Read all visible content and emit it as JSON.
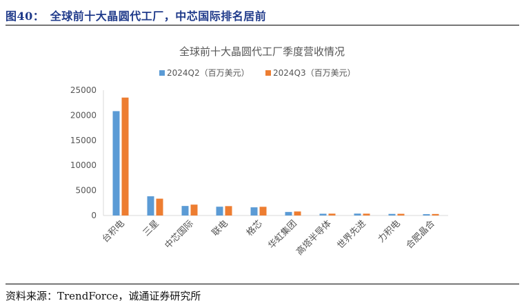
{
  "figure": {
    "title": "图40：　全球前十大晶圆代工厂，中芯国际排名居前",
    "source": "资料来源：TrendForce，诚通证券研究所"
  },
  "chart_data": {
    "type": "bar",
    "title": "全球前十大晶圆代工厂季度营收情况",
    "categories": [
      "台积电",
      "三星",
      "中芯国际",
      "联电",
      "格芯",
      "华虹集团",
      "高塔半导体",
      "世界先进",
      "力积电",
      "合肥晶合"
    ],
    "series": [
      {
        "name": "2024Q2（百万美元）",
        "color": "#5b9bd5",
        "values": [
          20819,
          3833,
          1901,
          1756,
          1632,
          707,
          351,
          380,
          315,
          265
        ]
      },
      {
        "name": "2024Q3（百万美元）",
        "color": "#ed7d31",
        "values": [
          23527,
          3357,
          2171,
          1873,
          1739,
          800,
          371,
          366,
          336,
          299
        ]
      }
    ],
    "ylim": [
      0,
      25000
    ],
    "yticks": [
      "0",
      "5000",
      "10000",
      "15000",
      "20000",
      "25000"
    ],
    "grid": false,
    "legend_position": "top-center"
  }
}
